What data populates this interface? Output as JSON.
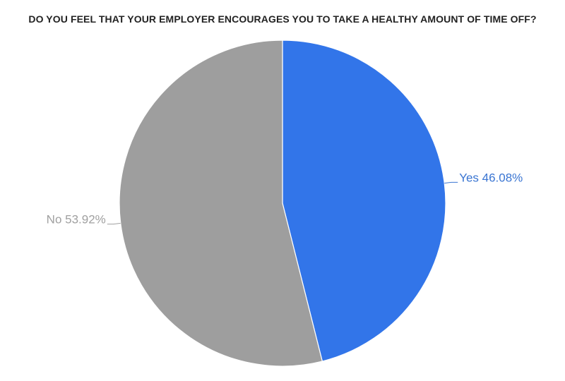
{
  "chart_data": {
    "type": "pie",
    "title": "DO YOU FEEL THAT YOUR EMPLOYER ENCOURAGES YOU TO TAKE A HEALTHY AMOUNT OF TIME OFF?",
    "start_angle_deg": 0,
    "direction": "clockwise",
    "slices": [
      {
        "name": "Yes",
        "value": 46.08,
        "label": "Yes 46.08%",
        "color": "#3275e9",
        "label_color": "#3a75d2"
      },
      {
        "name": "No",
        "value": 53.92,
        "label": "No 53.92%",
        "color": "#9e9e9e",
        "label_color": "#a0a0a0"
      }
    ]
  }
}
